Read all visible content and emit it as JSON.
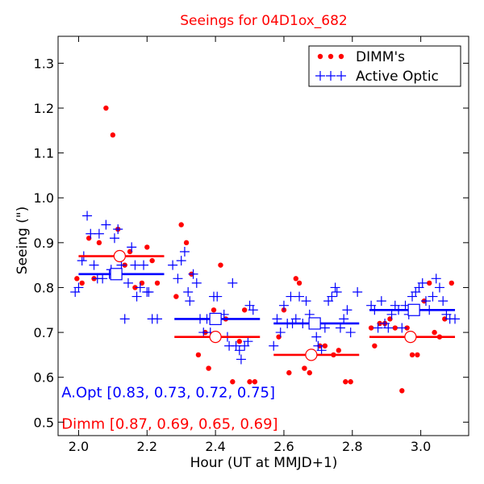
{
  "chart_data": {
    "type": "scatter",
    "title": "Seeings for 04D1ox_682",
    "xlabel": "Hour (UT at MMJD+1)",
    "ylabel": "Seeing (\")",
    "xlim": [
      1.94,
      3.14
    ],
    "ylim": [
      0.47,
      1.36
    ],
    "xticks": [
      2.0,
      2.2,
      2.4,
      2.6,
      2.8,
      3.0
    ],
    "xtick_labels": [
      "2.0",
      "2.2",
      "2.4",
      "2.6",
      "2.8",
      "3.0"
    ],
    "yticks": [
      0.5,
      0.6,
      0.7,
      0.8,
      0.9,
      1.0,
      1.1,
      1.2,
      1.3
    ],
    "ytick_labels": [
      "0.5",
      "0.6",
      "0.7",
      "0.8",
      "0.9",
      "1.0",
      "1.1",
      "1.2",
      "1.3"
    ],
    "legend": {
      "position": "top-right",
      "entries": [
        {
          "label": "DIMM's",
          "marker": "dots",
          "color": "#ff0000"
        },
        {
          "label": "Active Optic",
          "marker": "plus",
          "color": "#0000ff"
        }
      ]
    },
    "series": [
      {
        "name": "DIMM's",
        "marker": "dot",
        "color": "#ff0000",
        "points": [
          [
            1.995,
            0.82
          ],
          [
            2.01,
            0.81
          ],
          [
            2.03,
            0.91
          ],
          [
            2.045,
            0.82
          ],
          [
            2.06,
            0.9
          ],
          [
            2.08,
            1.2
          ],
          [
            2.1,
            1.14
          ],
          [
            2.115,
            0.93
          ],
          [
            2.135,
            0.85
          ],
          [
            2.15,
            0.88
          ],
          [
            2.165,
            0.8
          ],
          [
            2.185,
            0.81
          ],
          [
            2.2,
            0.89
          ],
          [
            2.215,
            0.86
          ],
          [
            2.23,
            0.81
          ],
          [
            2.285,
            0.78
          ],
          [
            2.3,
            0.94
          ],
          [
            2.315,
            0.9
          ],
          [
            2.33,
            0.83
          ],
          [
            2.35,
            0.65
          ],
          [
            2.37,
            0.7
          ],
          [
            2.38,
            0.62
          ],
          [
            2.395,
            0.75
          ],
          [
            2.415,
            0.85
          ],
          [
            2.43,
            0.73
          ],
          [
            2.45,
            0.59
          ],
          [
            2.47,
            0.68
          ],
          [
            2.485,
            0.75
          ],
          [
            2.5,
            0.59
          ],
          [
            2.515,
            0.59
          ],
          [
            2.585,
            0.69
          ],
          [
            2.6,
            0.75
          ],
          [
            2.615,
            0.61
          ],
          [
            2.635,
            0.82
          ],
          [
            2.645,
            0.81
          ],
          [
            2.66,
            0.62
          ],
          [
            2.675,
            0.61
          ],
          [
            2.69,
            0.65
          ],
          [
            2.705,
            0.67
          ],
          [
            2.72,
            0.67
          ],
          [
            2.745,
            0.65
          ],
          [
            2.76,
            0.66
          ],
          [
            2.78,
            0.59
          ],
          [
            2.795,
            0.59
          ],
          [
            2.855,
            0.71
          ],
          [
            2.865,
            0.67
          ],
          [
            2.88,
            0.72
          ],
          [
            2.895,
            0.72
          ],
          [
            2.91,
            0.73
          ],
          [
            2.925,
            0.71
          ],
          [
            2.945,
            0.57
          ],
          [
            2.96,
            0.71
          ],
          [
            2.975,
            0.65
          ],
          [
            2.99,
            0.65
          ],
          [
            3.01,
            0.77
          ],
          [
            3.025,
            0.81
          ],
          [
            3.04,
            0.7
          ],
          [
            3.055,
            0.69
          ],
          [
            3.07,
            0.73
          ],
          [
            3.09,
            0.81
          ]
        ]
      },
      {
        "name": "Active Optic",
        "marker": "plus",
        "color": "#0000ff",
        "points": [
          [
            1.99,
            0.79
          ],
          [
            2.0,
            0.8
          ],
          [
            2.01,
            0.86
          ],
          [
            2.015,
            0.87
          ],
          [
            2.025,
            0.96
          ],
          [
            2.035,
            0.92
          ],
          [
            2.045,
            0.85
          ],
          [
            2.055,
            0.82
          ],
          [
            2.06,
            0.92
          ],
          [
            2.07,
            0.82
          ],
          [
            2.08,
            0.94
          ],
          [
            2.09,
            0.83
          ],
          [
            2.095,
            0.84
          ],
          [
            2.105,
            0.91
          ],
          [
            2.115,
            0.93
          ],
          [
            2.125,
            0.85
          ],
          [
            2.135,
            0.73
          ],
          [
            2.145,
            0.81
          ],
          [
            2.155,
            0.89
          ],
          [
            2.165,
            0.85
          ],
          [
            2.17,
            0.78
          ],
          [
            2.18,
            0.8
          ],
          [
            2.19,
            0.85
          ],
          [
            2.2,
            0.79
          ],
          [
            2.205,
            0.79
          ],
          [
            2.215,
            0.73
          ],
          [
            2.23,
            0.73
          ],
          [
            2.275,
            0.85
          ],
          [
            2.29,
            0.82
          ],
          [
            2.3,
            0.86
          ],
          [
            2.31,
            0.88
          ],
          [
            2.32,
            0.79
          ],
          [
            2.325,
            0.77
          ],
          [
            2.335,
            0.83
          ],
          [
            2.345,
            0.81
          ],
          [
            2.355,
            0.73
          ],
          [
            2.365,
            0.7
          ],
          [
            2.375,
            0.73
          ],
          [
            2.385,
            0.7
          ],
          [
            2.395,
            0.78
          ],
          [
            2.405,
            0.78
          ],
          [
            2.415,
            0.73
          ],
          [
            2.425,
            0.74
          ],
          [
            2.435,
            0.69
          ],
          [
            2.44,
            0.67
          ],
          [
            2.45,
            0.81
          ],
          [
            2.46,
            0.67
          ],
          [
            2.47,
            0.66
          ],
          [
            2.475,
            0.64
          ],
          [
            2.485,
            0.67
          ],
          [
            2.495,
            0.68
          ],
          [
            2.5,
            0.76
          ],
          [
            2.51,
            0.75
          ],
          [
            2.57,
            0.67
          ],
          [
            2.58,
            0.73
          ],
          [
            2.59,
            0.7
          ],
          [
            2.6,
            0.76
          ],
          [
            2.61,
            0.72
          ],
          [
            2.62,
            0.78
          ],
          [
            2.625,
            0.72
          ],
          [
            2.635,
            0.73
          ],
          [
            2.645,
            0.78
          ],
          [
            2.655,
            0.72
          ],
          [
            2.665,
            0.77
          ],
          [
            2.675,
            0.74
          ],
          [
            2.685,
            0.72
          ],
          [
            2.695,
            0.69
          ],
          [
            2.7,
            0.67
          ],
          [
            2.71,
            0.66
          ],
          [
            2.72,
            0.71
          ],
          [
            2.73,
            0.77
          ],
          [
            2.74,
            0.78
          ],
          [
            2.75,
            0.8
          ],
          [
            2.755,
            0.79
          ],
          [
            2.765,
            0.71
          ],
          [
            2.775,
            0.73
          ],
          [
            2.785,
            0.75
          ],
          [
            2.795,
            0.7
          ],
          [
            2.815,
            0.79
          ],
          [
            2.855,
            0.76
          ],
          [
            2.865,
            0.75
          ],
          [
            2.875,
            0.71
          ],
          [
            2.885,
            0.77
          ],
          [
            2.895,
            0.72
          ],
          [
            2.905,
            0.71
          ],
          [
            2.915,
            0.74
          ],
          [
            2.925,
            0.76
          ],
          [
            2.935,
            0.75
          ],
          [
            2.945,
            0.71
          ],
          [
            2.955,
            0.76
          ],
          [
            2.965,
            0.74
          ],
          [
            2.975,
            0.78
          ],
          [
            2.985,
            0.79
          ],
          [
            2.995,
            0.8
          ],
          [
            3.005,
            0.81
          ],
          [
            3.015,
            0.77
          ],
          [
            3.025,
            0.75
          ],
          [
            3.035,
            0.78
          ],
          [
            3.045,
            0.82
          ],
          [
            3.055,
            0.8
          ],
          [
            3.065,
            0.77
          ],
          [
            3.075,
            0.74
          ],
          [
            3.085,
            0.73
          ],
          [
            3.1,
            0.73
          ]
        ]
      }
    ],
    "averages": [
      {
        "series": "DIMM's",
        "color": "#ff0000",
        "marker": "circle",
        "segments": [
          {
            "x": [
              2.0,
              2.25
            ],
            "y": 0.87,
            "marker_x": 2.12
          },
          {
            "x": [
              2.28,
              2.53
            ],
            "y": 0.69,
            "marker_x": 2.4
          },
          {
            "x": [
              2.57,
              2.82
            ],
            "y": 0.65,
            "marker_x": 2.68
          },
          {
            "x": [
              2.85,
              3.1
            ],
            "y": 0.69,
            "marker_x": 2.97
          }
        ]
      },
      {
        "series": "Active Optic",
        "color": "#0000ff",
        "marker": "square",
        "segments": [
          {
            "x": [
              2.0,
              2.25
            ],
            "y": 0.83,
            "marker_x": 2.11
          },
          {
            "x": [
              2.28,
              2.53
            ],
            "y": 0.73,
            "marker_x": 2.4
          },
          {
            "x": [
              2.57,
              2.82
            ],
            "y": 0.72,
            "marker_x": 2.69
          },
          {
            "x": [
              2.85,
              3.1
            ],
            "y": 0.75,
            "marker_x": 2.98
          }
        ]
      }
    ],
    "annotations": [
      {
        "text": "A.Opt [0.83, 0.73, 0.72, 0.75]",
        "color": "#0000ff",
        "at": [
          1.95,
          0.555
        ]
      },
      {
        "text": "Dimm [0.87, 0.69, 0.65, 0.69]",
        "color": "#ff0000",
        "at": [
          1.95,
          0.485
        ]
      }
    ],
    "title_color": "#ff0000"
  }
}
